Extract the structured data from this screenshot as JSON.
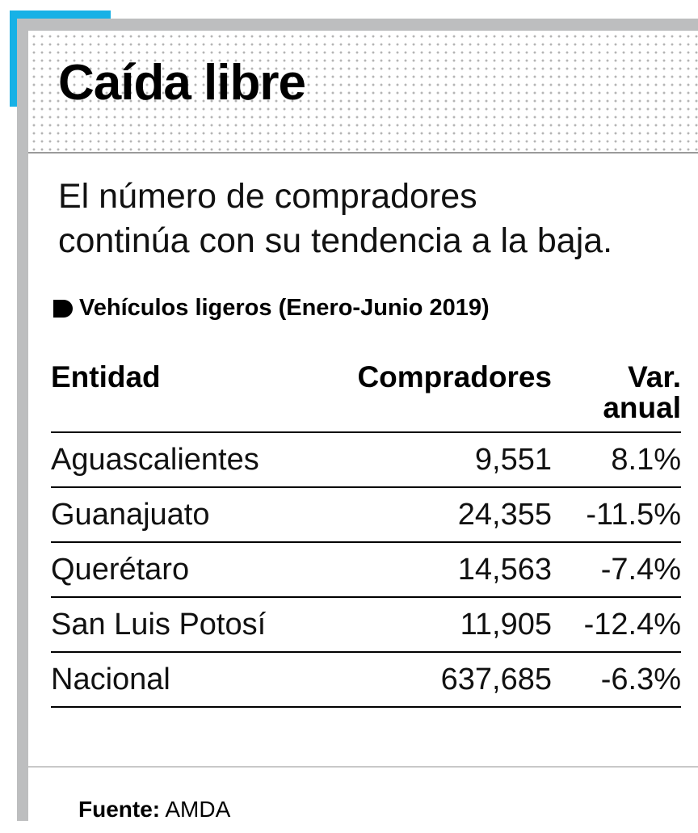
{
  "title": "Caída libre",
  "subtitle_lines": [
    "El número de compradores",
    "continúa con su tendencia a la baja."
  ],
  "colors": {
    "accent": "#17b1e6",
    "frame": "#bdbebf"
  },
  "chart_data": {
    "type": "table",
    "title": "Vehículos ligeros (Enero-Junio 2019)",
    "columns": [
      "Entidad",
      "Compradores",
      "Var. anual"
    ],
    "rows": [
      [
        "Aguascalientes",
        "9,551",
        "8.1%"
      ],
      [
        "Guanajuato",
        "24,355",
        "-11.5%"
      ],
      [
        "Querétaro",
        "14,563",
        "-7.4%"
      ],
      [
        "San Luis Potosí",
        "11,905",
        "-12.4%"
      ],
      [
        "Nacional",
        "637,685",
        "-6.3%"
      ]
    ]
  },
  "source": {
    "label": "Fuente:",
    "value": "AMDA"
  }
}
